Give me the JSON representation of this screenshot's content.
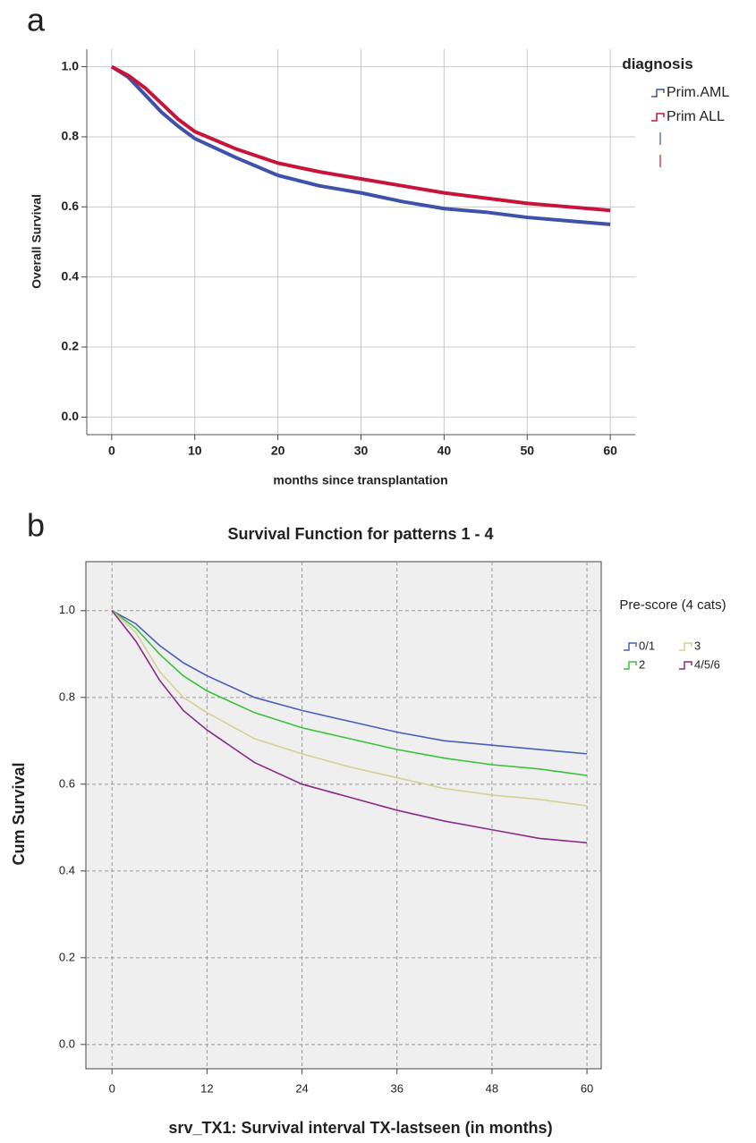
{
  "chart_data": [
    {
      "type": "line",
      "panel_label": "a",
      "ylabel": "Overall Survival",
      "xlabel": "months since transplantation",
      "legend_title": "diagnosis",
      "x": [
        0,
        2,
        4,
        6,
        8,
        10,
        15,
        20,
        25,
        30,
        35,
        40,
        45,
        50,
        55,
        60
      ],
      "series": [
        {
          "name": "Prim.AML",
          "color": "#3f51a8",
          "values": [
            1.0,
            0.97,
            0.92,
            0.87,
            0.83,
            0.795,
            0.74,
            0.69,
            0.66,
            0.64,
            0.615,
            0.595,
            0.585,
            0.57,
            0.56,
            0.55
          ]
        },
        {
          "name": "Prim ALL",
          "color": "#c8143a",
          "values": [
            1.0,
            0.975,
            0.94,
            0.895,
            0.85,
            0.815,
            0.765,
            0.725,
            0.7,
            0.68,
            0.66,
            0.64,
            0.625,
            0.61,
            0.6,
            0.59
          ]
        }
      ],
      "xlim": [
        -3,
        63
      ],
      "ylim": [
        -0.05,
        1.05
      ],
      "xticks": [
        0,
        10,
        20,
        30,
        40,
        50,
        60
      ],
      "yticks": [
        {
          "value": 0,
          "label": "0.0"
        },
        0.2,
        0.4,
        0.6,
        0.8,
        {
          "value": 1,
          "label": "1.0"
        }
      ],
      "grid": true
    },
    {
      "type": "line",
      "panel_label": "b",
      "title": "Survival Function for patterns 1 - 4",
      "ylabel": "Cum Survival",
      "xlabel": "srv_TX1: Survival interval TX-lastseen (in months)",
      "legend_title": "Pre-score (4 cats)",
      "x": [
        0,
        3,
        6,
        9,
        12,
        18,
        24,
        30,
        36,
        42,
        48,
        54,
        60
      ],
      "series": [
        {
          "name": "0/1",
          "color": "#4a5fb8",
          "values": [
            1.0,
            0.97,
            0.92,
            0.88,
            0.85,
            0.8,
            0.77,
            0.745,
            0.72,
            0.7,
            0.69,
            0.68,
            0.67
          ]
        },
        {
          "name": "2",
          "color": "#3cbf3c",
          "values": [
            1.0,
            0.96,
            0.9,
            0.85,
            0.815,
            0.765,
            0.73,
            0.705,
            0.68,
            0.66,
            0.645,
            0.635,
            0.62
          ]
        },
        {
          "name": "3",
          "color": "#d6d096",
          "values": [
            1.0,
            0.95,
            0.86,
            0.8,
            0.765,
            0.705,
            0.67,
            0.64,
            0.615,
            0.59,
            0.575,
            0.565,
            0.55
          ]
        },
        {
          "name": "4/5/6",
          "color": "#8a2a8a",
          "values": [
            1.0,
            0.93,
            0.84,
            0.77,
            0.725,
            0.65,
            0.6,
            0.57,
            0.54,
            0.515,
            0.495,
            0.475,
            0.465
          ]
        }
      ],
      "xlim": [
        -3.3,
        61.8
      ],
      "ylim": [
        -0.056,
        1.113
      ],
      "xticks": [
        0,
        12,
        24,
        36,
        48,
        60
      ],
      "yticks": [
        {
          "value": 0,
          "label": "0.0"
        },
        0.2,
        0.4,
        0.6,
        0.8,
        {
          "value": 1,
          "label": "1.0"
        }
      ],
      "grid": true
    }
  ]
}
